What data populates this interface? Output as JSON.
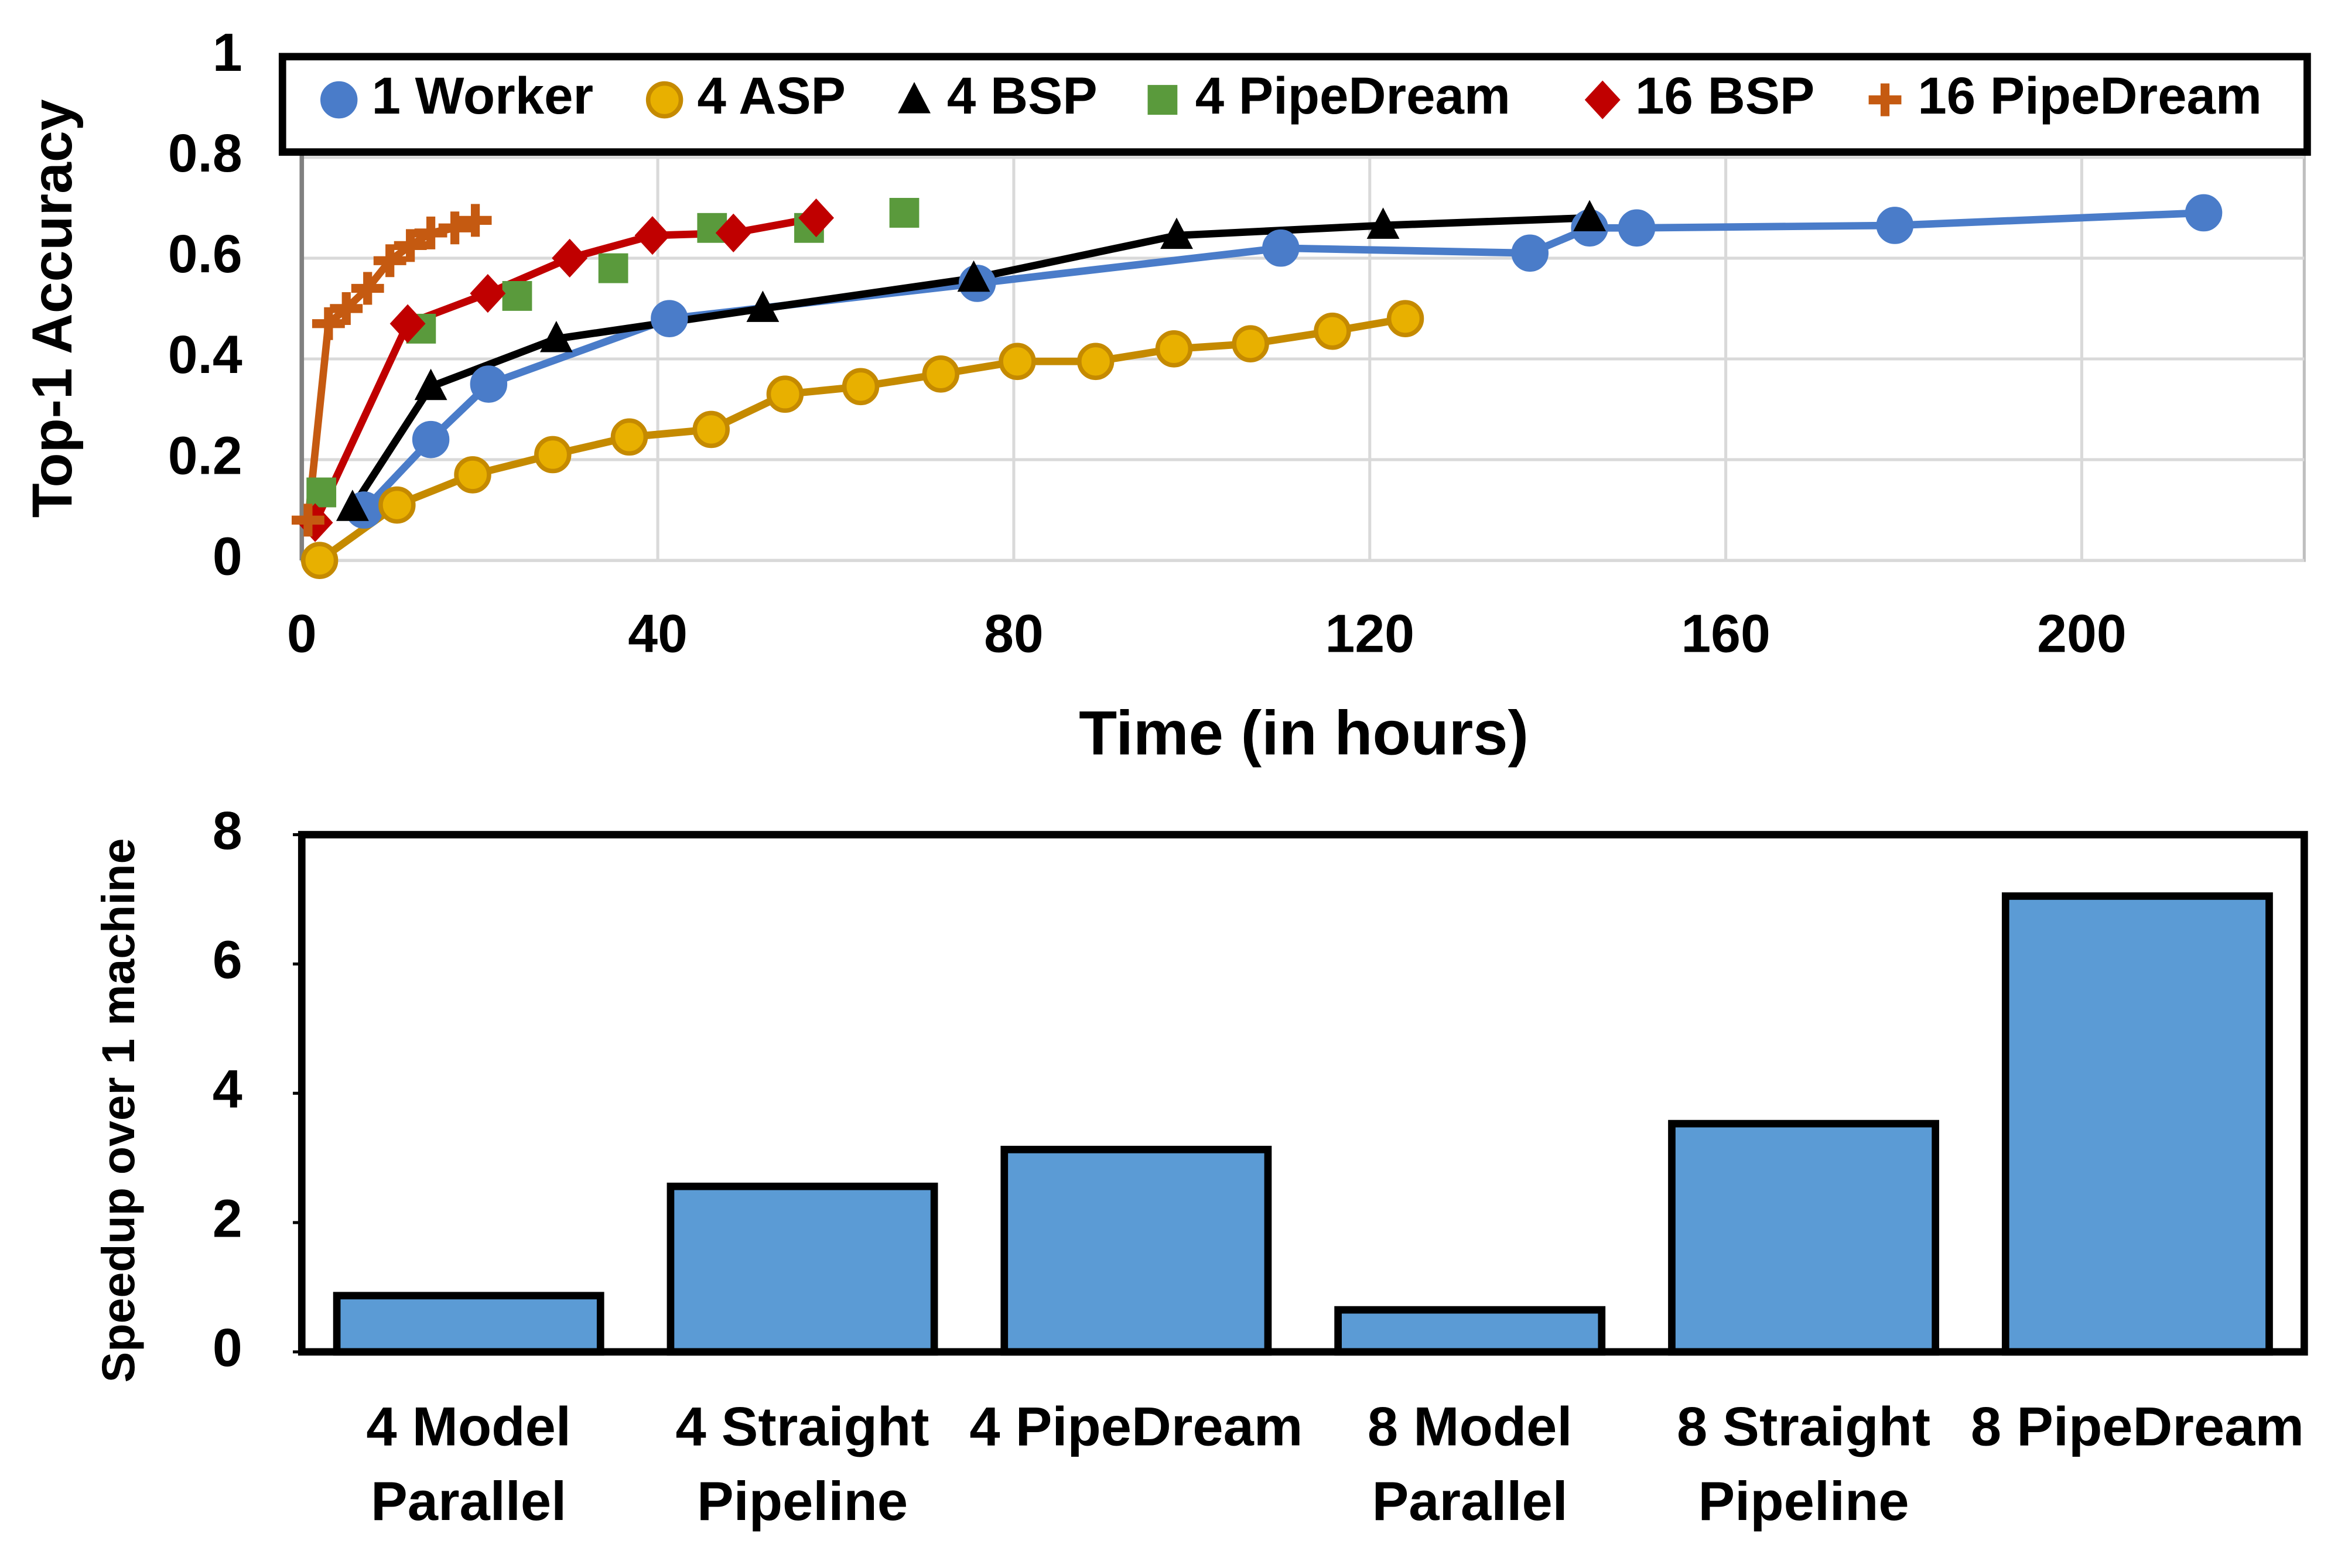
{
  "chart_data": [
    {
      "type": "line",
      "xlabel": "Time (in hours)",
      "ylabel": "Top-1 Accuracy",
      "xlim": [
        0,
        225
      ],
      "xticks": [
        0,
        40,
        80,
        120,
        160,
        200
      ],
      "ylim": [
        0,
        1
      ],
      "yticks": [
        0,
        0.2,
        0.4,
        0.6,
        0.8,
        1
      ],
      "grid": true,
      "legend": "top",
      "series": [
        {
          "name": "1 Worker",
          "color": "#4a7cc9",
          "marker": "circle",
          "line": true,
          "x": [
            7,
            14.5,
            21,
            41.3,
            75.9,
            110,
            138,
            144.7,
            150,
            179,
            213.7
          ],
          "values": [
            0.1,
            0.24,
            0.35,
            0.48,
            0.55,
            0.62,
            0.61,
            0.66,
            0.66,
            0.665,
            0.69
          ]
        },
        {
          "name": "4 ASP",
          "color": "#e8b000",
          "edgecolor": "#c58a00",
          "marker": "circle",
          "line": true,
          "x": [
            2,
            10.7,
            19.2,
            28.2,
            36.8,
            46,
            54.3,
            62.8,
            71.8,
            80.4,
            89.2,
            98,
            106.6,
            115.8,
            124
          ],
          "values": [
            0,
            0.11,
            0.17,
            0.21,
            0.245,
            0.26,
            0.33,
            0.345,
            0.37,
            0.395,
            0.395,
            0.42,
            0.43,
            0.455,
            0.48
          ]
        },
        {
          "name": "4 BSP",
          "color": "#000000",
          "marker": "triangle",
          "line": true,
          "x": [
            5.7,
            14.5,
            28.6,
            51.8,
            75.5,
            98.3,
            121.5,
            144.7
          ],
          "values": [
            0.105,
            0.345,
            0.44,
            0.5,
            0.56,
            0.645,
            0.665,
            0.68
          ]
        },
        {
          "name": "4 PipeDream",
          "color": "#5a9a3c",
          "marker": "square",
          "line": false,
          "x": [
            2.2,
            13.4,
            24.2,
            35,
            46.1,
            57,
            67.7
          ],
          "values": [
            0.135,
            0.46,
            0.525,
            0.58,
            0.66,
            0.66,
            0.69
          ]
        },
        {
          "name": "16 BSP",
          "color": "#c00000",
          "marker": "diamond",
          "line": true,
          "x": [
            1.5,
            11.9,
            20.9,
            30.1,
            39.4,
            48.5,
            57.8
          ],
          "values": [
            0.075,
            0.47,
            0.53,
            0.6,
            0.645,
            0.65,
            0.68
          ]
        },
        {
          "name": "16 PipeDream",
          "color": "#c55a11",
          "marker": "plus",
          "line": true,
          "x": [
            0.7,
            3,
            5,
            7.4,
            9.9,
            12.2,
            14.5,
            17.2,
            19.5
          ],
          "values": [
            0.08,
            0.47,
            0.5,
            0.54,
            0.595,
            0.625,
            0.65,
            0.66,
            0.675
          ]
        }
      ]
    },
    {
      "type": "bar",
      "ylabel": "Speedup over 1 machine",
      "categories": [
        [
          "4 Model",
          "Parallel"
        ],
        [
          "4 Straight",
          "Pipeline"
        ],
        [
          "4 PipeDream"
        ],
        [
          "8 Model",
          "Parallel"
        ],
        [
          "8 Straight",
          "Pipeline"
        ],
        [
          "8 PipeDream"
        ]
      ],
      "values": [
        0.87,
        2.56,
        3.13,
        0.65,
        3.53,
        7.05
      ],
      "color": "#5b9bd5",
      "ylim": [
        0,
        8
      ],
      "yticks": [
        0,
        2,
        4,
        6,
        8
      ],
      "grid": false
    }
  ]
}
